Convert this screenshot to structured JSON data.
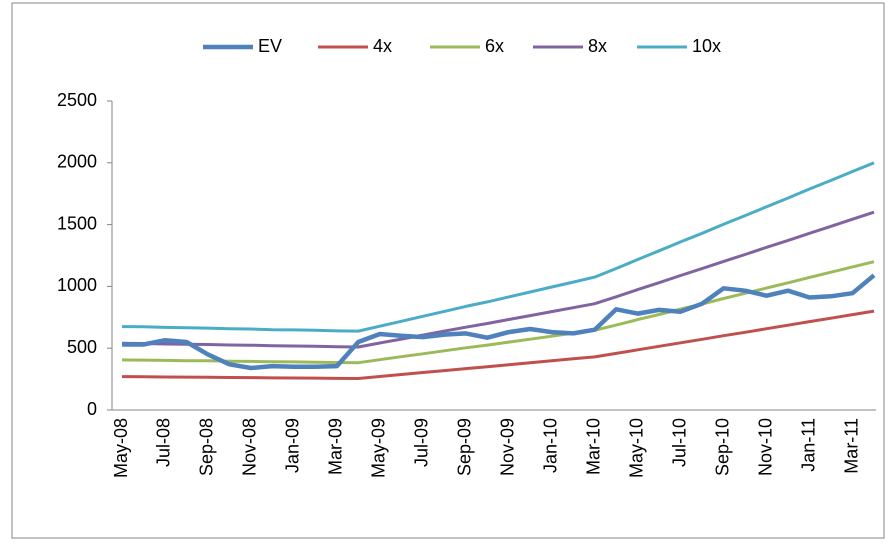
{
  "chart_data": {
    "type": "line",
    "categories": [
      "May-08",
      null,
      "Jul-08",
      null,
      "Sep-08",
      null,
      "Nov-08",
      null,
      "Jan-09",
      null,
      "Mar-09",
      null,
      "May-09",
      null,
      "Jul-09",
      null,
      "Sep-09",
      null,
      "Nov-09",
      null,
      "Jan-10",
      null,
      "Mar-10",
      null,
      "May-10",
      null,
      "Jul-10",
      null,
      "Sep-10",
      null,
      "Nov-10",
      null,
      "Jan-11",
      null,
      "Mar-11",
      null
    ],
    "series": [
      {
        "name": "EV",
        "color": "#4f81bd",
        "values": [
          530,
          530,
          565,
          550,
          450,
          370,
          340,
          355,
          350,
          350,
          355,
          550,
          615,
          600,
          590,
          610,
          620,
          585,
          630,
          655,
          630,
          620,
          650,
          815,
          780,
          810,
          795,
          860,
          985,
          965,
          925,
          965,
          910,
          920,
          945,
          1090
        ]
      },
      {
        "name": "4x",
        "color": "#c0504d",
        "values": [
          270,
          269,
          267,
          266,
          265,
          263,
          262,
          260,
          259,
          258,
          256,
          255,
          271,
          287,
          303,
          319,
          335,
          350,
          366,
          382,
          398,
          414,
          430,
          458,
          487,
          515,
          544,
          572,
          601,
          629,
          658,
          686,
          715,
          743,
          772,
          800
        ]
      },
      {
        "name": "6x",
        "color": "#9bbb59",
        "values": [
          405,
          404,
          401,
          399,
          398,
          395,
          393,
          390,
          389,
          387,
          384,
          383,
          407,
          431,
          455,
          479,
          503,
          525,
          549,
          573,
          597,
          621,
          645,
          687,
          731,
          773,
          816,
          858,
          902,
          944,
          987,
          1029,
          1073,
          1115,
          1158,
          1200
        ]
      },
      {
        "name": "8x",
        "color": "#8064a2",
        "values": [
          540,
          538,
          534,
          532,
          530,
          526,
          524,
          520,
          518,
          516,
          512,
          510,
          542,
          574,
          606,
          638,
          670,
          700,
          732,
          764,
          796,
          828,
          860,
          916,
          974,
          1030,
          1088,
          1144,
          1202,
          1258,
          1316,
          1372,
          1430,
          1486,
          1544,
          1600
        ]
      },
      {
        "name": "10x",
        "color": "#4bacc6",
        "values": [
          675,
          673,
          668,
          665,
          663,
          658,
          655,
          650,
          648,
          645,
          640,
          638,
          678,
          718,
          758,
          798,
          838,
          875,
          915,
          955,
          995,
          1035,
          1075,
          1145,
          1218,
          1288,
          1360,
          1430,
          1503,
          1573,
          1645,
          1715,
          1788,
          1858,
          1930,
          2000
        ]
      }
    ],
    "ylim": [
      0,
      2500
    ],
    "yticks": [
      0,
      500,
      1000,
      1500,
      2000,
      2500
    ],
    "grid": false,
    "legend": "top"
  }
}
